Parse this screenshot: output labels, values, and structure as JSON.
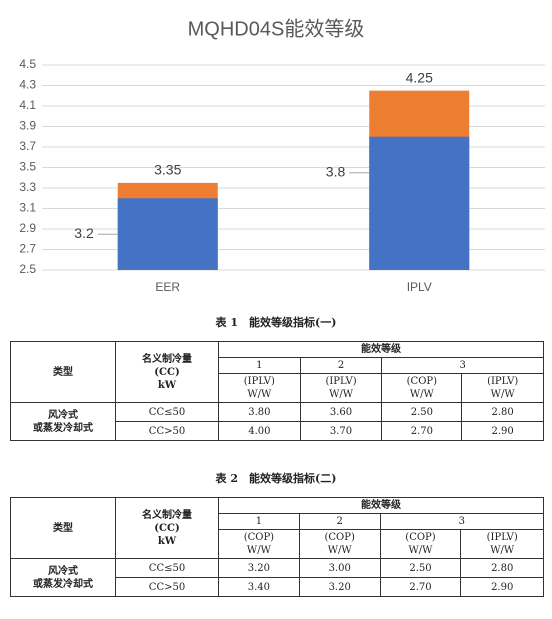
{
  "chart_data": {
    "type": "bar",
    "barmode": "overlay",
    "title": "MQHD04S能效等级",
    "categories": [
      "EER",
      "IPLV"
    ],
    "series": [
      {
        "color": "#ed7d31",
        "values": [
          3.35,
          4.25
        ]
      },
      {
        "color": "#4472c4",
        "values": [
          3.2,
          3.8
        ]
      }
    ],
    "ylim": [
      2.5,
      4.5
    ],
    "yticks": [
      2.5,
      2.7,
      2.9,
      3.1,
      3.3,
      3.5,
      3.7,
      3.9,
      4.1,
      4.3,
      4.5
    ],
    "grid": true
  },
  "tables": [
    {
      "caption": "表 1　能效等级指标(一)",
      "type_header": "类型",
      "capacity_header": [
        "名义制冷量",
        "(CC)",
        "kW"
      ],
      "grade_header": "能效等级",
      "grades": [
        "1",
        "2",
        "3"
      ],
      "units": [
        [
          "(IPLV)",
          "W/W"
        ],
        [
          "(IPLV)",
          "W/W"
        ],
        [
          "(COP)",
          "W/W"
        ],
        [
          "(IPLV)",
          "W/W"
        ]
      ],
      "row_group": [
        "风冷式",
        "或蒸发冷却式"
      ],
      "rows": [
        [
          "CC≤50",
          "3.80",
          "3.60",
          "2.50",
          "2.80"
        ],
        [
          "CC>50",
          "4.00",
          "3.70",
          "2.70",
          "2.90"
        ]
      ]
    },
    {
      "caption": "表 2　能效等级指标(二)",
      "type_header": "类型",
      "capacity_header": [
        "名义制冷量",
        "(CC)",
        "kW"
      ],
      "grade_header": "能效等级",
      "grades": [
        "1",
        "2",
        "3"
      ],
      "units": [
        [
          "(COP)",
          "W/W"
        ],
        [
          "(COP)",
          "W/W"
        ],
        [
          "(COP)",
          "W/W"
        ],
        [
          "(IPLV)",
          "W/W"
        ]
      ],
      "row_group": [
        "风冷式",
        "或蒸发冷却式"
      ],
      "rows": [
        [
          "CC≤50",
          "3.20",
          "3.00",
          "2.50",
          "2.80"
        ],
        [
          "CC>50",
          "3.40",
          "3.20",
          "2.70",
          "2.90"
        ]
      ]
    }
  ]
}
